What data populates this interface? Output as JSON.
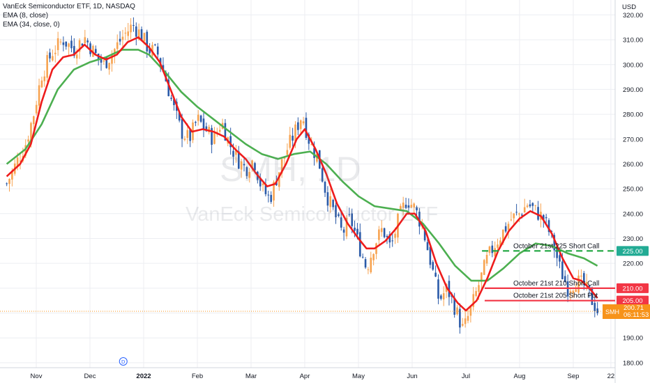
{
  "header": {
    "symbol_line": "VanEck Semiconductor ETF, 1D, NASDAQ",
    "indicator_1": "EMA (8, close)",
    "indicator_2": "EMA (34, close, 0)"
  },
  "watermark": {
    "ticker": "SMH, 1D",
    "name": "VanEck Semiconductor ETF"
  },
  "currency": "USD",
  "colors": {
    "up": "#f7a350",
    "down": "#2a5aa8",
    "ema_fast": "#ee1c1c",
    "ema_slow": "#4caf50",
    "short_call_line": "#1ea53f",
    "strike_line": "#f23645",
    "last_price": "#f7931a"
  },
  "last_price": {
    "ticker": "SMH",
    "value": "200.71",
    "countdown": "06:11:53"
  },
  "chart_data": {
    "type": "candlestick",
    "ylim": [
      178,
      326
    ],
    "y_ticks": [
      180,
      190,
      200,
      210,
      220,
      230,
      240,
      250,
      260,
      270,
      280,
      290,
      300,
      310,
      320
    ],
    "x_ticks": [
      {
        "label": "Nov",
        "x": 1
      },
      {
        "label": "Dec",
        "x": 2
      },
      {
        "label": "2022",
        "x": 3
      },
      {
        "label": "Feb",
        "x": 4
      },
      {
        "label": "Mar",
        "x": 5
      },
      {
        "label": "Apr",
        "x": 6
      },
      {
        "label": "May",
        "x": 7
      },
      {
        "label": "Jun",
        "x": 8
      },
      {
        "label": "Jul",
        "x": 9
      },
      {
        "label": "Aug",
        "x": 10
      },
      {
        "label": "Sep",
        "x": 11
      },
      {
        "label": "22",
        "x": 11.7
      }
    ],
    "xlim": [
      0.45,
      11.95
    ],
    "close_path": [
      [
        0.45,
        252
      ],
      [
        0.62,
        260
      ],
      [
        0.8,
        268
      ],
      [
        0.95,
        280
      ],
      [
        1.1,
        296
      ],
      [
        1.3,
        305
      ],
      [
        1.5,
        310
      ],
      [
        1.7,
        306
      ],
      [
        1.9,
        311
      ],
      [
        2.1,
        304
      ],
      [
        2.25,
        300
      ],
      [
        2.4,
        304
      ],
      [
        2.6,
        311
      ],
      [
        2.8,
        316
      ],
      [
        2.95,
        312
      ],
      [
        3.1,
        306
      ],
      [
        3.25,
        305
      ],
      [
        3.4,
        295
      ],
      [
        3.55,
        283
      ],
      [
        3.7,
        273
      ],
      [
        3.85,
        270
      ],
      [
        4.0,
        278
      ],
      [
        4.15,
        274
      ],
      [
        4.3,
        270
      ],
      [
        4.45,
        277
      ],
      [
        4.6,
        268
      ],
      [
        4.75,
        262
      ],
      [
        4.9,
        258
      ],
      [
        5.05,
        262
      ],
      [
        5.2,
        250
      ],
      [
        5.35,
        246
      ],
      [
        5.5,
        256
      ],
      [
        5.65,
        265
      ],
      [
        5.8,
        272
      ],
      [
        5.95,
        280
      ],
      [
        6.1,
        268
      ],
      [
        6.25,
        262
      ],
      [
        6.4,
        248
      ],
      [
        6.55,
        240
      ],
      [
        6.7,
        232
      ],
      [
        6.85,
        238
      ],
      [
        7.0,
        228
      ],
      [
        7.15,
        218
      ],
      [
        7.3,
        228
      ],
      [
        7.45,
        234
      ],
      [
        7.6,
        226
      ],
      [
        7.75,
        238
      ],
      [
        7.9,
        246
      ],
      [
        8.05,
        242
      ],
      [
        8.2,
        234
      ],
      [
        8.35,
        220
      ],
      [
        8.5,
        205
      ],
      [
        8.65,
        210
      ],
      [
        8.8,
        202
      ],
      [
        8.95,
        193
      ],
      [
        9.1,
        202
      ],
      [
        9.25,
        212
      ],
      [
        9.4,
        222
      ],
      [
        9.55,
        228
      ],
      [
        9.7,
        233
      ],
      [
        9.85,
        238
      ],
      [
        10.0,
        240
      ],
      [
        10.15,
        244
      ],
      [
        10.3,
        241
      ],
      [
        10.45,
        238
      ],
      [
        10.6,
        230
      ],
      [
        10.75,
        218
      ],
      [
        10.9,
        210
      ],
      [
        11.05,
        213
      ],
      [
        11.2,
        211
      ],
      [
        11.35,
        205
      ],
      [
        11.45,
        201
      ]
    ],
    "ema_8": [
      [
        0.45,
        255
      ],
      [
        0.7,
        260
      ],
      [
        0.9,
        268
      ],
      [
        1.1,
        285
      ],
      [
        1.3,
        298
      ],
      [
        1.5,
        303
      ],
      [
        1.7,
        304
      ],
      [
        1.9,
        308
      ],
      [
        2.1,
        304
      ],
      [
        2.3,
        302
      ],
      [
        2.5,
        304
      ],
      [
        2.7,
        309
      ],
      [
        2.9,
        311
      ],
      [
        3.1,
        307
      ],
      [
        3.3,
        301
      ],
      [
        3.5,
        290
      ],
      [
        3.7,
        279
      ],
      [
        3.9,
        273
      ],
      [
        4.1,
        274
      ],
      [
        4.3,
        273
      ],
      [
        4.5,
        271
      ],
      [
        4.7,
        266
      ],
      [
        4.9,
        262
      ],
      [
        5.1,
        256
      ],
      [
        5.3,
        251
      ],
      [
        5.45,
        252
      ],
      [
        5.65,
        260
      ],
      [
        5.85,
        270
      ],
      [
        6.0,
        274
      ],
      [
        6.2,
        266
      ],
      [
        6.4,
        256
      ],
      [
        6.6,
        244
      ],
      [
        6.8,
        236
      ],
      [
        7.0,
        230
      ],
      [
        7.15,
        226
      ],
      [
        7.3,
        226
      ],
      [
        7.5,
        229
      ],
      [
        7.7,
        234
      ],
      [
        7.9,
        240
      ],
      [
        8.05,
        240
      ],
      [
        8.25,
        233
      ],
      [
        8.45,
        220
      ],
      [
        8.65,
        210
      ],
      [
        8.85,
        204
      ],
      [
        9.0,
        201
      ],
      [
        9.2,
        205
      ],
      [
        9.4,
        214
      ],
      [
        9.6,
        225
      ],
      [
        9.8,
        233
      ],
      [
        10.0,
        238
      ],
      [
        10.2,
        241
      ],
      [
        10.4,
        239
      ],
      [
        10.6,
        232
      ],
      [
        10.8,
        222
      ],
      [
        11.0,
        214
      ],
      [
        11.15,
        213
      ],
      [
        11.3,
        210
      ],
      [
        11.45,
        206
      ]
    ],
    "ema_34": [
      [
        0.45,
        260
      ],
      [
        0.8,
        266
      ],
      [
        1.1,
        276
      ],
      [
        1.4,
        290
      ],
      [
        1.7,
        298
      ],
      [
        2.0,
        301
      ],
      [
        2.3,
        303
      ],
      [
        2.6,
        306
      ],
      [
        2.9,
        306
      ],
      [
        3.1,
        304
      ],
      [
        3.4,
        297
      ],
      [
        3.7,
        289
      ],
      [
        4.0,
        283
      ],
      [
        4.3,
        278
      ],
      [
        4.6,
        273
      ],
      [
        4.9,
        268
      ],
      [
        5.2,
        264
      ],
      [
        5.5,
        262
      ],
      [
        5.8,
        264
      ],
      [
        6.1,
        265
      ],
      [
        6.4,
        260
      ],
      [
        6.7,
        253
      ],
      [
        7.0,
        247
      ],
      [
        7.3,
        243
      ],
      [
        7.6,
        242
      ],
      [
        7.9,
        241
      ],
      [
        8.2,
        236
      ],
      [
        8.5,
        228
      ],
      [
        8.8,
        219
      ],
      [
        9.1,
        213
      ],
      [
        9.4,
        213
      ],
      [
        9.7,
        218
      ],
      [
        10.0,
        224
      ],
      [
        10.3,
        228
      ],
      [
        10.6,
        227
      ],
      [
        10.9,
        224
      ],
      [
        11.2,
        222
      ],
      [
        11.45,
        219
      ]
    ],
    "levels": [
      {
        "name": "October 21st 225 Short Call",
        "price": 225,
        "label": "225.00",
        "style": "dashed",
        "x_start": 9.3
      },
      {
        "name": "October 21st 210 Short Call",
        "price": 210,
        "label": "210.00",
        "style": "solid",
        "x_start": 9.35
      },
      {
        "name": "October 21st 205 Short Put",
        "price": 205,
        "label": "205.00",
        "style": "solid",
        "x_start": 9.35
      }
    ],
    "last_price": 200.71
  },
  "dividend_marker": {
    "label": "D",
    "x": 2.62
  }
}
